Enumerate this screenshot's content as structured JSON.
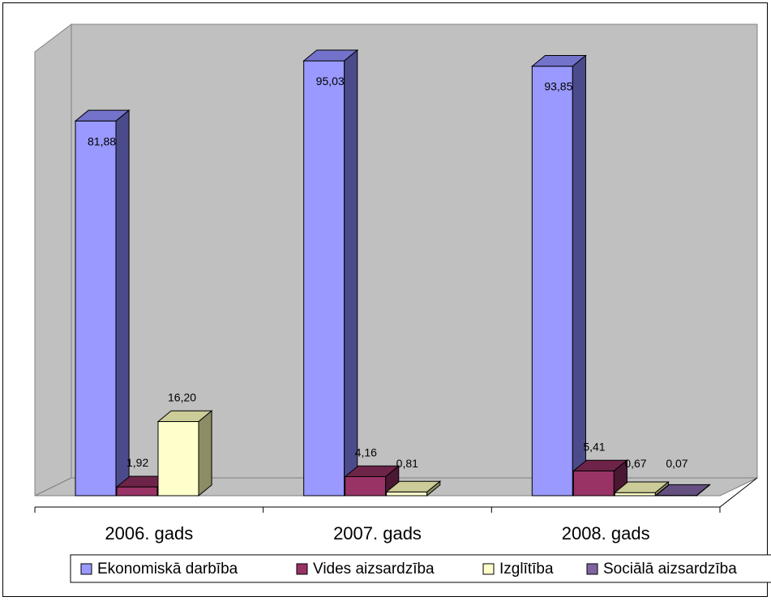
{
  "chart_data": {
    "type": "bar",
    "categories": [
      "2006. gads",
      "2007. gads",
      "2008. gads"
    ],
    "series": [
      {
        "name": "Ekonomiskā darbība",
        "values": [
          81.88,
          95.03,
          93.85
        ],
        "labels": [
          "81,88",
          "95,03",
          "93,85"
        ],
        "color": "#9999FF",
        "side": "#4B4B8C",
        "top": "#7373CC"
      },
      {
        "name": "Vides aizsardzība",
        "values": [
          1.92,
          4.16,
          5.41
        ],
        "labels": [
          "1,92",
          "4,16",
          "5,41"
        ],
        "color": "#993366",
        "side": "#4A1832",
        "top": "#6E2448"
      },
      {
        "name": "Izglītība",
        "values": [
          16.2,
          0.81,
          0.67
        ],
        "labels": [
          "16,20",
          "0,81",
          "0,67"
        ],
        "color": "#FFFFCC",
        "side": "#8C8C66",
        "top": "#CCCC99"
      },
      {
        "name": "Sociālā aizsardzība",
        "values": [
          null,
          null,
          0.07
        ],
        "labels": [
          "",
          "",
          "0,07"
        ],
        "color": "#8064A2",
        "side": "#4A3A60",
        "top": "#654F80"
      }
    ],
    "ylim": [
      0,
      100
    ],
    "grid": false,
    "legend_position": "bottom",
    "colors": {
      "wall": "#C0C0C0",
      "floor": "#C0C0C0"
    }
  }
}
